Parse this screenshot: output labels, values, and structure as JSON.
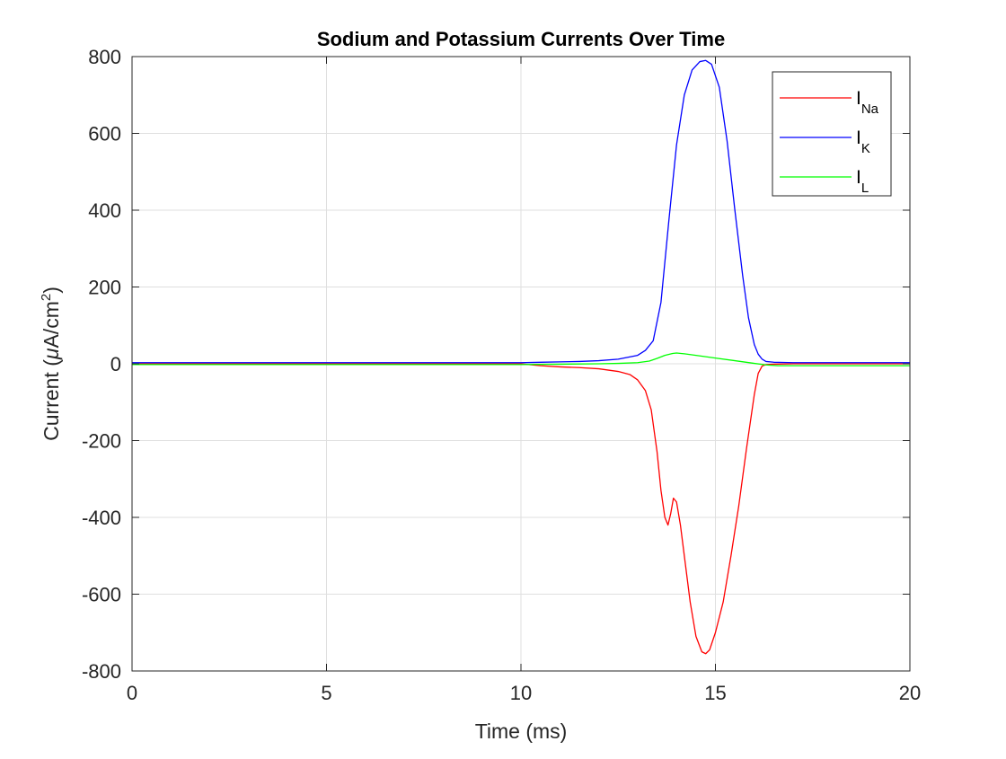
{
  "chart_data": {
    "type": "line",
    "title": "Sodium and Potassium Currents Over Time",
    "xlabel": "Time (ms)",
    "ylabel": {
      "prefix": "Current (",
      "mu": "μ",
      "units": "A/cm",
      "sup": "2",
      "suffix": ")"
    },
    "xlim": [
      0,
      20
    ],
    "ylim": [
      -800,
      800
    ],
    "xticks": [
      0,
      5,
      10,
      15,
      20
    ],
    "yticks": [
      -800,
      -600,
      -400,
      -200,
      0,
      200,
      400,
      600,
      800
    ],
    "grid": true,
    "legend_position": "top-right",
    "series": [
      {
        "name": {
          "main": "I",
          "sub": "Na"
        },
        "color": "#ff0000",
        "x": [
          0,
          5,
          10,
          10.2,
          10.5,
          11,
          11.5,
          12,
          12.5,
          12.8,
          13.0,
          13.2,
          13.35,
          13.5,
          13.6,
          13.7,
          13.78,
          13.85,
          13.92,
          14.0,
          14.1,
          14.2,
          14.35,
          14.5,
          14.65,
          14.75,
          14.85,
          15.0,
          15.2,
          15.4,
          15.6,
          15.8,
          16.0,
          16.1,
          16.2,
          16.3,
          16.5,
          17,
          18,
          19,
          20
        ],
        "y": [
          0,
          0,
          0,
          -2,
          -5,
          -8,
          -10,
          -13,
          -20,
          -28,
          -42,
          -70,
          -120,
          -230,
          -330,
          -400,
          -420,
          -390,
          -350,
          -360,
          -420,
          -500,
          -620,
          -710,
          -750,
          -755,
          -745,
          -700,
          -620,
          -500,
          -370,
          -220,
          -80,
          -25,
          -6,
          -2,
          -1,
          0,
          0,
          0,
          0
        ]
      },
      {
        "name": {
          "main": "I",
          "sub": "K"
        },
        "color": "#0000ff",
        "x": [
          0,
          5,
          10,
          10.5,
          11,
          11.5,
          12,
          12.5,
          13.0,
          13.2,
          13.4,
          13.6,
          13.8,
          14.0,
          14.2,
          14.4,
          14.6,
          14.75,
          14.9,
          15.1,
          15.3,
          15.5,
          15.7,
          15.85,
          16.0,
          16.1,
          16.2,
          16.3,
          16.5,
          17,
          18,
          19,
          20
        ],
        "y": [
          3,
          3,
          3,
          4,
          5,
          6,
          8,
          12,
          22,
          35,
          60,
          160,
          370,
          570,
          700,
          765,
          787,
          790,
          780,
          720,
          580,
          400,
          230,
          120,
          50,
          25,
          12,
          6,
          4,
          3,
          3,
          3,
          3
        ]
      },
      {
        "name": {
          "main": "I",
          "sub": "L"
        },
        "color": "#00ff00",
        "x": [
          0,
          5,
          10,
          11,
          12,
          12.5,
          13.0,
          13.3,
          13.5,
          13.7,
          13.9,
          14.0,
          14.2,
          14.5,
          15.0,
          15.5,
          16.0,
          16.3,
          16.6,
          17,
          18,
          19,
          20
        ],
        "y": [
          -2,
          -2,
          -2,
          -1,
          0,
          1,
          3,
          7,
          14,
          22,
          27,
          28,
          26,
          22,
          15,
          8,
          1,
          -3,
          -5,
          -5,
          -5,
          -5,
          -5
        ]
      }
    ]
  }
}
